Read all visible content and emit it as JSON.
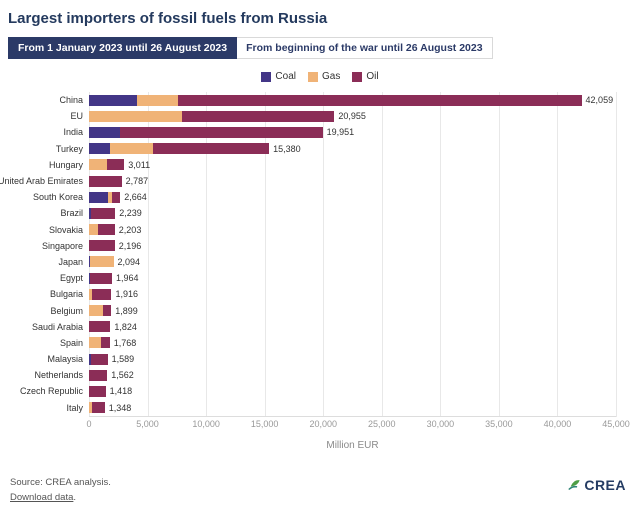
{
  "header": {
    "title": "Largest importers of fossil fuels from Russia"
  },
  "tabs": [
    {
      "label": "From 1 January 2023 until 26 August 2023",
      "active": true
    },
    {
      "label": "From beginning of the war until 26 August 2023",
      "active": false
    }
  ],
  "legend": [
    {
      "label": "Coal",
      "color": "#433687"
    },
    {
      "label": "Gas",
      "color": "#f0b377"
    },
    {
      "label": "Oil",
      "color": "#8b2d57"
    }
  ],
  "chart_data": {
    "type": "bar",
    "orientation": "horizontal",
    "stacked": true,
    "xlabel": "Million EUR",
    "xlim": [
      0,
      45000
    ],
    "x_ticks": [
      0,
      5000,
      10000,
      15000,
      20000,
      25000,
      30000,
      35000,
      40000,
      45000
    ],
    "x_tick_labels": [
      "0",
      "5,000",
      "10,000",
      "15,000",
      "20,000",
      "25,000",
      "30,000",
      "35,000",
      "40,000",
      "45,000"
    ],
    "series_names": [
      "Coal",
      "Gas",
      "Oil"
    ],
    "colors": {
      "coal": "#433687",
      "gas": "#f0b377",
      "oil": "#8b2d57"
    },
    "grid": true,
    "rows": [
      {
        "country": "China",
        "total": 42059,
        "total_label": "42,059",
        "coal": 4100,
        "gas": 3500,
        "oil": 34459
      },
      {
        "country": "EU",
        "total": 20955,
        "total_label": "20,955",
        "coal": 0,
        "gas": 7950,
        "oil": 13005
      },
      {
        "country": "India",
        "total": 19951,
        "total_label": "19,951",
        "coal": 2650,
        "gas": 0,
        "oil": 17301
      },
      {
        "country": "Turkey",
        "total": 15380,
        "total_label": "15,380",
        "coal": 1800,
        "gas": 3700,
        "oil": 9880
      },
      {
        "country": "Hungary",
        "total": 3011,
        "total_label": "3,011",
        "coal": 0,
        "gas": 1550,
        "oil": 1461
      },
      {
        "country": "United Arab Emirates",
        "total": 2787,
        "total_label": "2,787",
        "coal": 0,
        "gas": 0,
        "oil": 2787
      },
      {
        "country": "South Korea",
        "total": 2664,
        "total_label": "2,664",
        "coal": 1580,
        "gas": 380,
        "oil": 704
      },
      {
        "country": "Brazil",
        "total": 2239,
        "total_label": "2,239",
        "coal": 150,
        "gas": 0,
        "oil": 2089
      },
      {
        "country": "Slovakia",
        "total": 2203,
        "total_label": "2,203",
        "coal": 0,
        "gas": 800,
        "oil": 1403
      },
      {
        "country": "Singapore",
        "total": 2196,
        "total_label": "2,196",
        "coal": 0,
        "gas": 0,
        "oil": 2196
      },
      {
        "country": "Japan",
        "total": 2094,
        "total_label": "2,094",
        "coal": 110,
        "gas": 1984,
        "oil": 0
      },
      {
        "country": "Egypt",
        "total": 1964,
        "total_label": "1,964",
        "coal": 100,
        "gas": 0,
        "oil": 1864
      },
      {
        "country": "Bulgaria",
        "total": 1916,
        "total_label": "1,916",
        "coal": 0,
        "gas": 260,
        "oil": 1656
      },
      {
        "country": "Belgium",
        "total": 1899,
        "total_label": "1,899",
        "coal": 0,
        "gas": 1230,
        "oil": 669
      },
      {
        "country": "Saudi Arabia",
        "total": 1824,
        "total_label": "1,824",
        "coal": 0,
        "gas": 0,
        "oil": 1824
      },
      {
        "country": "Spain",
        "total": 1768,
        "total_label": "1,768",
        "coal": 0,
        "gas": 1060,
        "oil": 708
      },
      {
        "country": "Malaysia",
        "total": 1589,
        "total_label": "1,589",
        "coal": 130,
        "gas": 0,
        "oil": 1459
      },
      {
        "country": "Netherlands",
        "total": 1562,
        "total_label": "1,562",
        "coal": 0,
        "gas": 0,
        "oil": 1562
      },
      {
        "country": "Czech Republic",
        "total": 1418,
        "total_label": "1,418",
        "coal": 0,
        "gas": 0,
        "oil": 1418
      },
      {
        "country": "Italy",
        "total": 1348,
        "total_label": "1,348",
        "coal": 0,
        "gas": 250,
        "oil": 1098
      }
    ]
  },
  "footer": {
    "source": "Source: CREA analysis.",
    "download": "Download data",
    "download_suffix": ".",
    "logo_text": "CREA"
  }
}
